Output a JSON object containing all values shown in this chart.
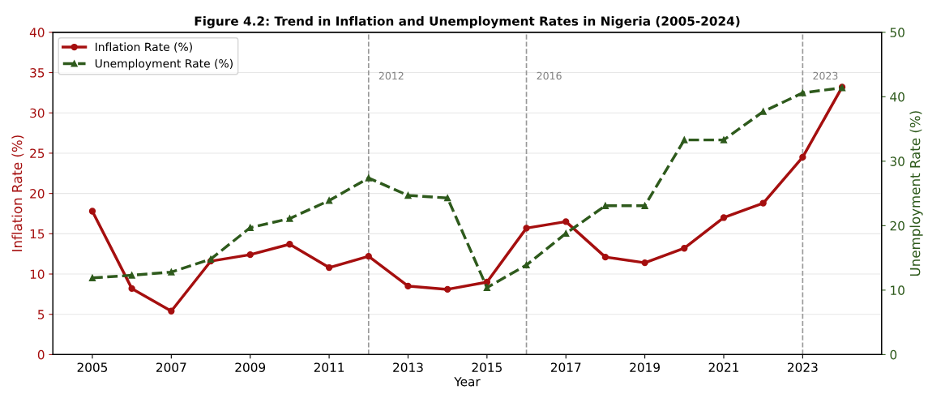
{
  "chart_data": {
    "type": "line",
    "title": "Figure 4.2: Trend in Inflation and Unemployment Rates in Nigeria (2005-2024)",
    "xlabel": "Year",
    "ylabel": "Inflation Rate (%)",
    "y2label": "Unemployment Rate (%)",
    "x": [
      2005,
      2006,
      2007,
      2008,
      2009,
      2010,
      2011,
      2012,
      2013,
      2014,
      2015,
      2016,
      2017,
      2018,
      2019,
      2020,
      2021,
      2022,
      2023,
      2024
    ],
    "series": [
      {
        "name": "Inflation Rate (%)",
        "color": "#a50f0f",
        "marker": "circle",
        "line_style": "solid",
        "values": [
          17.8,
          8.2,
          5.4,
          11.6,
          12.4,
          13.7,
          10.8,
          12.2,
          8.5,
          8.1,
          9.0,
          15.7,
          16.5,
          12.1,
          11.4,
          13.2,
          17.0,
          18.8,
          24.5,
          33.2
        ]
      },
      {
        "name": "Unemployment Rate (%)",
        "color": "#2e5a1c",
        "marker": "triangle",
        "line_style": "dashed",
        "axis": "y2",
        "values": [
          11.9,
          12.3,
          12.8,
          14.8,
          19.7,
          21.1,
          23.9,
          27.4,
          24.7,
          24.3,
          10.4,
          13.9,
          18.8,
          23.1,
          23.1,
          33.3,
          33.3,
          37.7,
          40.6,
          41.4
        ]
      }
    ],
    "xlim": [
      2004,
      2025
    ],
    "xticks": [
      2005,
      2007,
      2009,
      2011,
      2013,
      2015,
      2017,
      2019,
      2021,
      2023
    ],
    "ylim": [
      0,
      40
    ],
    "yticks": [
      0,
      5,
      10,
      15,
      20,
      25,
      30,
      35,
      40
    ],
    "y2lim": [
      0,
      50
    ],
    "y2ticks": [
      0,
      10,
      20,
      30,
      40,
      50
    ],
    "ref_lines": [
      {
        "axis": "x",
        "value": 2012,
        "label": "2012",
        "color": "#999999",
        "line_style": "dashed"
      },
      {
        "axis": "x",
        "value": 2016,
        "label": "2016",
        "color": "#999999",
        "line_style": "dashed"
      },
      {
        "axis": "x",
        "value": 2023,
        "label": "2023",
        "color": "#999999",
        "line_style": "dashed"
      }
    ],
    "grid": "y",
    "legend": "top left"
  }
}
